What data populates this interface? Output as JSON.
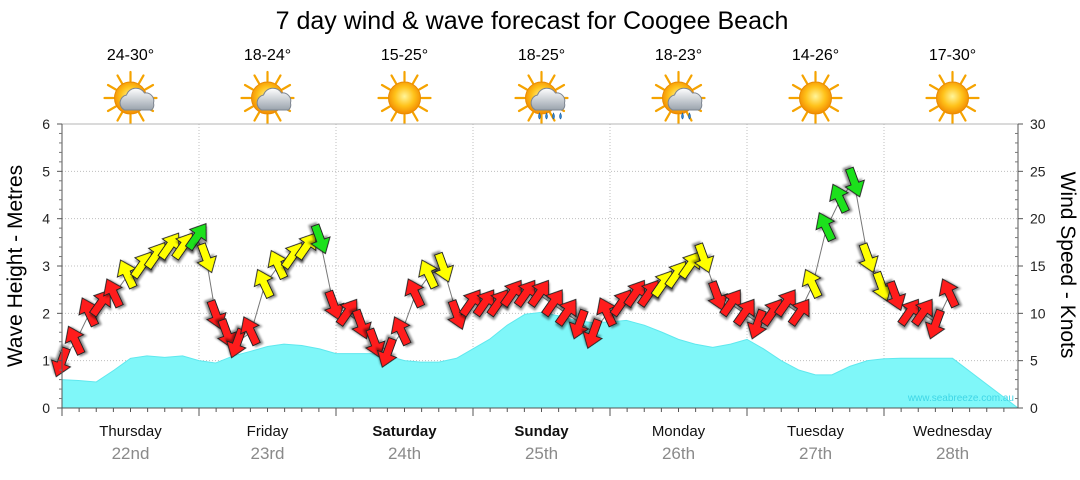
{
  "chart_data": {
    "type": "area",
    "title": "7 day wind & wave forecast for Coogee Beach",
    "ylabel_left": "Wave Height - Metres",
    "ylabel_right": "Wind Speed - Knots",
    "ylim_left": [
      0,
      6
    ],
    "ylim_right": [
      0,
      30
    ],
    "yticks_left": [
      "0",
      "1",
      "2",
      "3",
      "4",
      "5",
      "6"
    ],
    "yticks_right": [
      "0",
      "5",
      "10",
      "15",
      "20",
      "25",
      "30"
    ],
    "grid": true,
    "watermark": "www.seabreeze.com.au",
    "days": [
      {
        "weekday": "Thursday",
        "date": "22nd",
        "bold": false,
        "temp": "24-30°",
        "icon": "sun-cloud-icon"
      },
      {
        "weekday": "Friday",
        "date": "23rd",
        "bold": false,
        "temp": "18-24°",
        "icon": "sun-cloud-icon"
      },
      {
        "weekday": "Saturday",
        "date": "24th",
        "bold": true,
        "temp": "15-25°",
        "icon": "sun-icon"
      },
      {
        "weekday": "Sunday",
        "date": "25th",
        "bold": true,
        "temp": "18-25°",
        "icon": "sun-rain-cloud-icon"
      },
      {
        "weekday": "Monday",
        "date": "26th",
        "bold": false,
        "temp": "18-23°",
        "icon": "sun-shower-cloud-icon"
      },
      {
        "weekday": "Tuesday",
        "date": "27th",
        "bold": false,
        "temp": "14-26°",
        "icon": "sun-icon"
      },
      {
        "weekday": "Wednesday",
        "date": "28th",
        "bold": false,
        "temp": "17-30°",
        "icon": "sun-icon"
      }
    ],
    "wave_series": {
      "name": "Wave Height",
      "x_day": [
        0,
        0.12,
        0.25,
        0.38,
        0.5,
        0.62,
        0.75,
        0.88,
        1.0,
        1.12,
        1.25,
        1.38,
        1.5,
        1.62,
        1.75,
        1.88,
        2.0,
        2.12,
        2.25,
        2.38,
        2.5,
        2.62,
        2.75,
        2.88,
        3.0,
        3.12,
        3.25,
        3.38,
        3.5,
        3.62,
        3.75,
        3.88,
        4.0,
        4.12,
        4.25,
        4.38,
        4.5,
        4.62,
        4.75,
        4.88,
        5.0,
        5.12,
        5.25,
        5.38,
        5.5,
        5.62,
        5.75,
        5.88,
        6.0,
        6.12,
        6.25,
        6.38,
        6.5
      ],
      "values": [
        0.6,
        0.58,
        0.55,
        0.8,
        1.05,
        1.1,
        1.07,
        1.1,
        1.0,
        0.95,
        1.1,
        1.2,
        1.3,
        1.35,
        1.32,
        1.25,
        1.15,
        1.15,
        1.15,
        1.1,
        1.0,
        0.97,
        0.97,
        1.05,
        1.25,
        1.45,
        1.75,
        1.98,
        2.02,
        1.95,
        1.85,
        1.8,
        1.82,
        1.85,
        1.75,
        1.6,
        1.45,
        1.35,
        1.28,
        1.35,
        1.45,
        1.25,
        1.0,
        0.8,
        0.7,
        0.7,
        0.88,
        1.0,
        1.04,
        1.05,
        1.05,
        1.05,
        1.05
      ],
      "color": "#7ff7f9"
    },
    "wind_series": {
      "name": "Wind",
      "x_day": [
        0.0,
        0.1,
        0.2,
        0.28,
        0.38,
        0.48,
        0.58,
        0.68,
        0.78,
        0.88,
        0.98,
        1.05,
        1.12,
        1.2,
        1.28,
        1.38,
        1.48,
        1.58,
        1.68,
        1.78,
        1.88,
        1.98,
        2.08,
        2.18,
        2.28,
        2.38,
        2.48,
        2.58,
        2.68,
        2.78,
        2.88,
        2.98,
        3.08,
        3.18,
        3.28,
        3.38,
        3.48,
        3.58,
        3.68,
        3.78,
        3.88,
        3.98,
        4.08,
        4.18,
        4.28,
        4.38,
        4.48,
        4.58,
        4.68,
        4.78,
        4.88,
        4.98,
        5.08,
        5.18,
        5.28,
        5.38,
        5.48,
        5.58,
        5.68,
        5.78,
        5.88,
        5.98,
        6.08,
        6.18,
        6.28,
        6.38,
        6.48
      ],
      "knots": [
        5,
        7,
        10,
        11,
        12,
        14,
        15,
        16,
        17,
        17,
        18,
        16,
        10,
        8,
        7,
        8,
        13,
        15,
        16,
        17,
        18,
        11,
        10,
        9,
        7,
        6,
        8,
        12,
        14,
        15,
        10,
        11,
        11,
        11,
        12,
        12,
        12,
        11,
        10,
        9,
        8,
        10,
        11,
        12,
        12,
        13,
        14,
        15,
        16,
        12,
        11,
        10,
        9,
        10,
        11,
        10,
        13,
        19,
        22,
        24,
        16,
        13,
        12,
        10,
        10,
        9,
        12
      ],
      "color": "mixed"
    }
  }
}
